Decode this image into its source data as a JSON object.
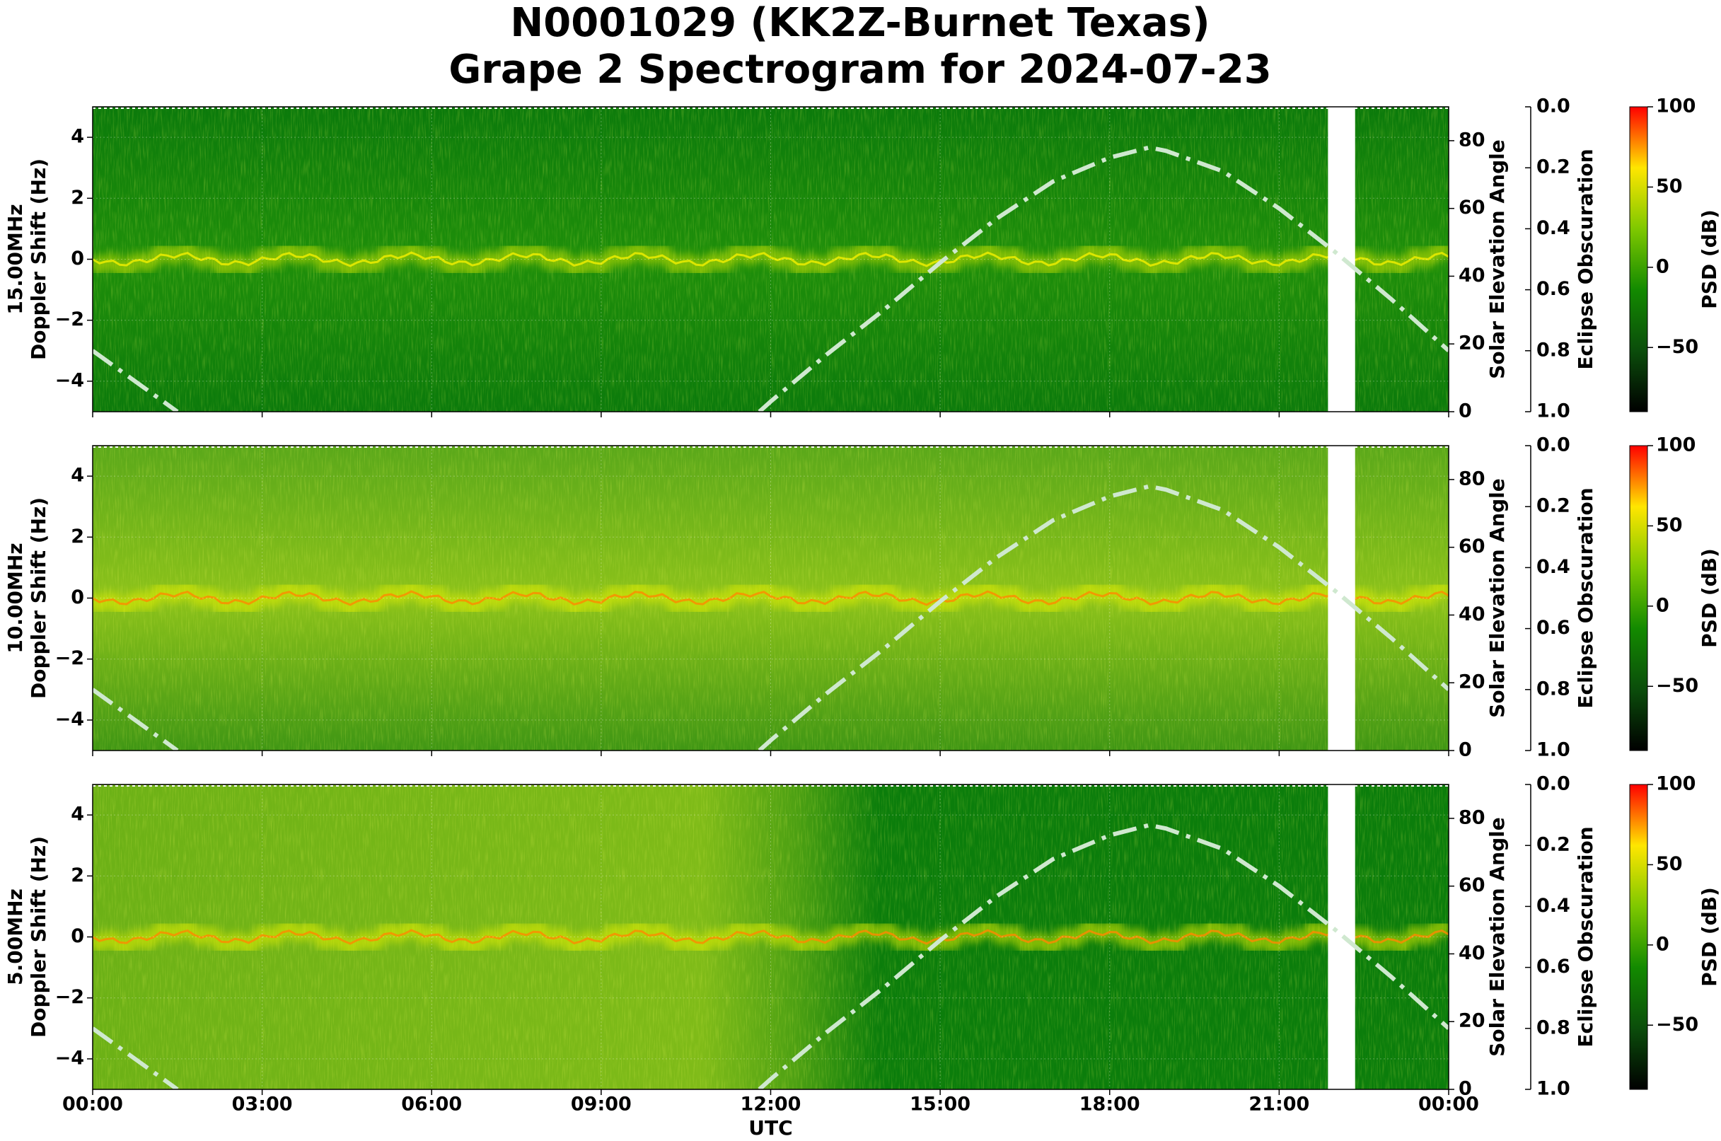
{
  "title": [
    "N0001029 (KK2Z-Burnet Texas)",
    "Grape 2 Spectrogram for 2024-07-23"
  ],
  "x_axis": {
    "label": "UTC",
    "lim": [
      0,
      24
    ],
    "ticks": [
      {
        "value": 0,
        "label": "00:00"
      },
      {
        "value": 3,
        "label": "03:00"
      },
      {
        "value": 6,
        "label": "06:00"
      },
      {
        "value": 9,
        "label": "09:00"
      },
      {
        "value": 12,
        "label": "12:00"
      },
      {
        "value": 15,
        "label": "15:00"
      },
      {
        "value": 18,
        "label": "18:00"
      },
      {
        "value": 21,
        "label": "21:00"
      },
      {
        "value": 24,
        "label": "00:00"
      }
    ]
  },
  "chart_data": [
    {
      "type": "spectrogram",
      "band": "15.00MHz",
      "ylabel": "Doppler Shift (Hz)",
      "ylim": [
        -5,
        5
      ],
      "yticks": [
        {
          "value": -4,
          "label": "−4"
        },
        {
          "value": -2,
          "label": "−2"
        },
        0,
        2,
        4
      ],
      "y2label": "Solar Elevation Angle",
      "y2lim": [
        0,
        90
      ],
      "y2ticks": [
        0,
        20,
        40,
        60,
        80
      ],
      "eclipse_label": "Eclipse Obscuration",
      "eclipse_lim": [
        1,
        0
      ],
      "eclipse_ticks": [
        {
          "value": 0,
          "label": "0.0"
        },
        0.2,
        0.4,
        0.6,
        0.8,
        {
          "value": 1,
          "label": "1.0"
        }
      ],
      "colorbar": {
        "label": "PSD (dB)",
        "lim": [
          -90,
          100
        ],
        "ticks": [
          100,
          50,
          0,
          {
            "value": -50,
            "label": "−50"
          }
        ],
        "colormap": [
          "#000000",
          "#0b4d0b",
          "#138a00",
          "#7fc800",
          "#ffe600",
          "#ff0000"
        ]
      },
      "solar_elevation": {
        "color": "#cfe8cf",
        "x": [
          0,
          0.5,
          1,
          1.5,
          6,
          11.8,
          12,
          13,
          14,
          15,
          16,
          17,
          18,
          18.7,
          19,
          20,
          21,
          22,
          23,
          24
        ],
        "values": [
          18,
          12,
          6,
          0,
          null,
          0,
          3,
          17,
          30,
          44,
          57,
          68,
          75,
          78,
          77,
          71,
          60,
          47,
          33,
          18
        ]
      }
    },
    {
      "type": "spectrogram",
      "band": "10.00MHz",
      "ylabel": "Doppler Shift (Hz)",
      "ylim": [
        -5,
        5
      ],
      "yticks": [
        {
          "value": -4,
          "label": "−4"
        },
        {
          "value": -2,
          "label": "−2"
        },
        0,
        2,
        4
      ],
      "y2label": "Solar Elevation Angle",
      "y2lim": [
        0,
        90
      ],
      "y2ticks": [
        0,
        20,
        40,
        60,
        80
      ],
      "eclipse_label": "Eclipse Obscuration",
      "eclipse_lim": [
        1,
        0
      ],
      "eclipse_ticks": [
        {
          "value": 0,
          "label": "0.0"
        },
        0.2,
        0.4,
        0.6,
        0.8,
        {
          "value": 1,
          "label": "1.0"
        }
      ],
      "colorbar": {
        "label": "PSD (dB)",
        "lim": [
          -90,
          100
        ],
        "ticks": [
          100,
          50,
          0,
          {
            "value": -50,
            "label": "−50"
          }
        ],
        "colormap": [
          "#000000",
          "#0b4d0b",
          "#138a00",
          "#7fc800",
          "#ffe600",
          "#ff0000"
        ]
      },
      "solar_elevation": {
        "color": "#cfe8cf",
        "x": [
          0,
          0.5,
          1,
          1.5,
          6,
          11.8,
          12,
          13,
          14,
          15,
          16,
          17,
          18,
          18.7,
          19,
          20,
          21,
          22,
          23,
          24
        ],
        "values": [
          18,
          12,
          6,
          0,
          null,
          0,
          3,
          17,
          30,
          44,
          57,
          68,
          75,
          78,
          77,
          71,
          60,
          47,
          33,
          18
        ]
      }
    },
    {
      "type": "spectrogram",
      "band": "5.00MHz",
      "ylabel": "Doppler Shift (Hz)",
      "ylim": [
        -5,
        5
      ],
      "yticks": [
        {
          "value": -4,
          "label": "−4"
        },
        {
          "value": -2,
          "label": "−2"
        },
        0,
        2,
        4
      ],
      "y2label": "Solar Elevation Angle",
      "y2lim": [
        0,
        90
      ],
      "y2ticks": [
        0,
        20,
        40,
        60,
        80
      ],
      "eclipse_label": "Eclipse Obscuration",
      "eclipse_lim": [
        1,
        0
      ],
      "eclipse_ticks": [
        {
          "value": 0,
          "label": "0.0"
        },
        0.2,
        0.4,
        0.6,
        0.8,
        {
          "value": 1,
          "label": "1.0"
        }
      ],
      "colorbar": {
        "label": "PSD (dB)",
        "lim": [
          -90,
          100
        ],
        "ticks": [
          100,
          50,
          0,
          {
            "value": -50,
            "label": "−50"
          }
        ],
        "colormap": [
          "#000000",
          "#0b4d0b",
          "#138a00",
          "#7fc800",
          "#ffe600",
          "#ff0000"
        ]
      },
      "solar_elevation": {
        "color": "#cfe8cf",
        "x": [
          0,
          0.5,
          1,
          1.5,
          6,
          11.8,
          12,
          13,
          14,
          15,
          16,
          17,
          18,
          18.7,
          19,
          20,
          21,
          22,
          23,
          24
        ],
        "values": [
          18,
          12,
          6,
          0,
          null,
          0,
          3,
          17,
          30,
          44,
          57,
          68,
          75,
          78,
          77,
          71,
          60,
          47,
          33,
          18
        ]
      }
    }
  ]
}
